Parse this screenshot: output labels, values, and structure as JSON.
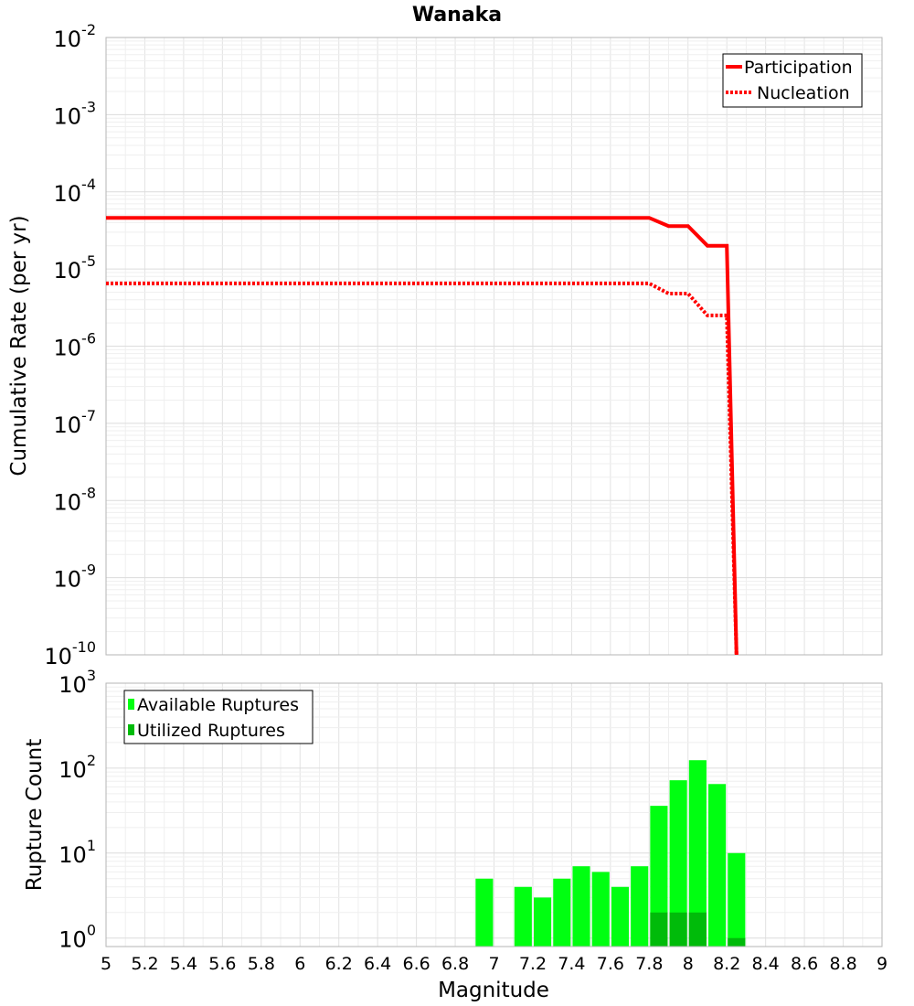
{
  "chart_data": [
    {
      "type": "line",
      "title": "Wanaka",
      "xlabel": "",
      "ylabel": "Cumulative Rate (per yr)",
      "xlim": [
        5,
        9
      ],
      "ylim_log10": [
        -10,
        -2
      ],
      "yscale": "log",
      "y_tick_exponents": [
        "-2",
        "-3",
        "-4",
        "-5",
        "-6",
        "-7",
        "-8",
        "-9",
        "-10"
      ],
      "legend_position": "top-right",
      "series": [
        {
          "name": "Participation",
          "style": "solid",
          "color": "#ff0000",
          "x": [
            5.0,
            7.8,
            7.9,
            8.0,
            8.1,
            8.2,
            8.25
          ],
          "y": [
            4.6e-05,
            4.6e-05,
            3.6e-05,
            3.6e-05,
            2e-05,
            2e-05,
            1e-10
          ]
        },
        {
          "name": "Nucleation",
          "style": "dotted",
          "color": "#ff0000",
          "x": [
            5.0,
            7.8,
            7.9,
            8.0,
            8.1,
            8.2,
            8.25
          ],
          "y": [
            6.5e-06,
            6.5e-06,
            4.8e-06,
            4.8e-06,
            2.5e-06,
            2.5e-06,
            1e-10
          ]
        }
      ]
    },
    {
      "type": "bar",
      "title": "",
      "xlabel": "Magnitude",
      "ylabel": "Rupture Count",
      "xlim": [
        5,
        9
      ],
      "ylim_log10": [
        -0.1,
        3
      ],
      "yscale": "log",
      "y_tick_exponents": [
        "3",
        "2",
        "1",
        "0"
      ],
      "legend_position": "top-left",
      "bar_width": 0.09,
      "x_ticks": [
        "5",
        "5.2",
        "5.4",
        "5.6",
        "5.8",
        "6",
        "6.2",
        "6.4",
        "6.6",
        "6.8",
        "7",
        "7.2",
        "7.4",
        "7.6",
        "7.8",
        "8",
        "8.2",
        "8.4",
        "8.6",
        "8.8",
        "9"
      ],
      "categories": [
        6.95,
        7.15,
        7.25,
        7.35,
        7.45,
        7.55,
        7.65,
        7.75,
        7.85,
        7.95,
        8.05,
        8.15,
        8.25
      ],
      "series": [
        {
          "name": "Available Ruptures",
          "color": "#00ff11",
          "values": [
            5,
            4,
            3,
            5,
            7,
            6,
            4,
            7,
            36,
            72,
            124,
            65,
            10
          ]
        },
        {
          "name": "Utilized Ruptures",
          "color": "#00bb0a",
          "values": [
            0,
            0,
            0,
            0,
            0,
            0,
            0,
            0,
            2,
            2,
            2,
            0,
            1
          ]
        }
      ]
    }
  ]
}
